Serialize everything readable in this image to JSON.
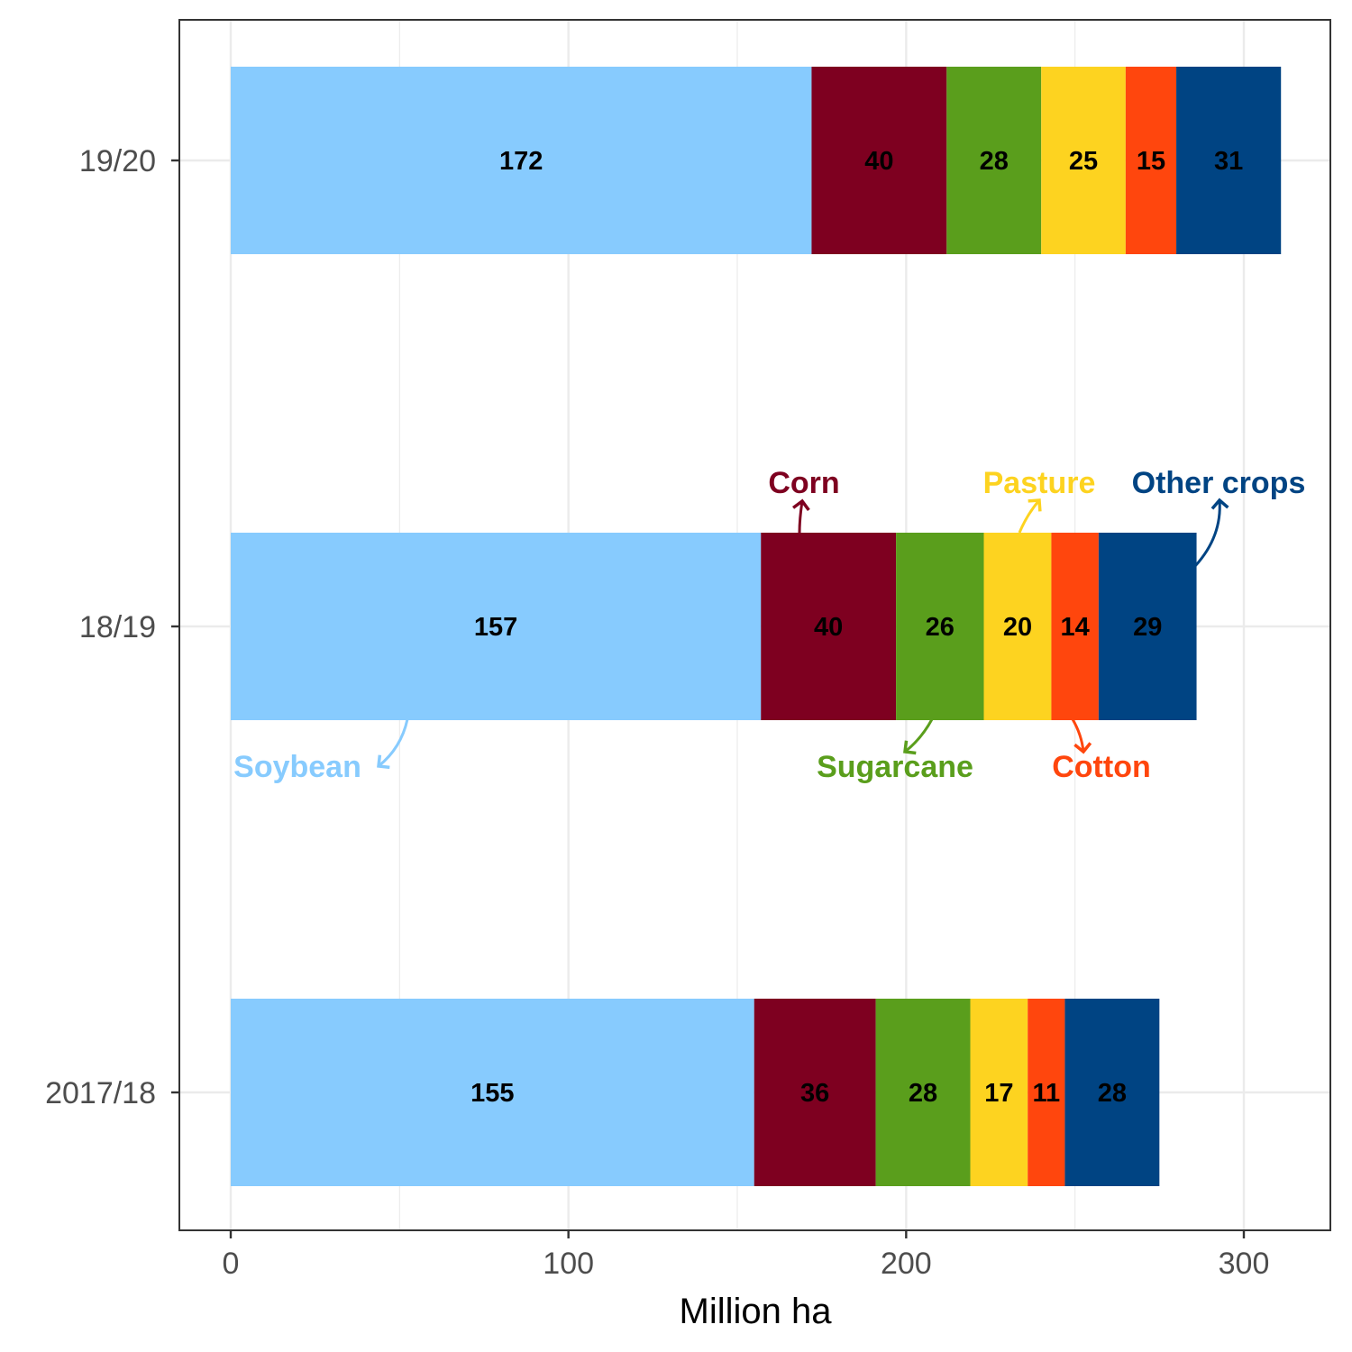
{
  "chart_data": {
    "type": "bar",
    "orientation": "horizontal",
    "stacked": true,
    "categories": [
      "2017/18",
      "18/19",
      "19/20"
    ],
    "series": [
      {
        "name": "Soybean",
        "color": "#87CBFE",
        "values": [
          155,
          157,
          172
        ]
      },
      {
        "name": "Corn",
        "color": "#7E0020",
        "values": [
          36,
          40,
          40
        ]
      },
      {
        "name": "Sugarcane",
        "color": "#5A9E1C",
        "values": [
          28,
          26,
          28
        ]
      },
      {
        "name": "Pasture",
        "color": "#FDD320",
        "values": [
          17,
          20,
          25
        ]
      },
      {
        "name": "Cotton",
        "color": "#FF460D",
        "values": [
          11,
          14,
          15
        ]
      },
      {
        "name": "Other crops",
        "color": "#004483",
        "values": [
          28,
          29,
          31
        ]
      }
    ],
    "xlabel": "Million ha",
    "ylabel": "",
    "xlim": [
      -15,
      326
    ],
    "xticks": [
      0,
      100,
      200,
      300
    ],
    "grid": true,
    "data_labels": true,
    "legend": "inline arrow annotations on the 18/19 bar"
  }
}
